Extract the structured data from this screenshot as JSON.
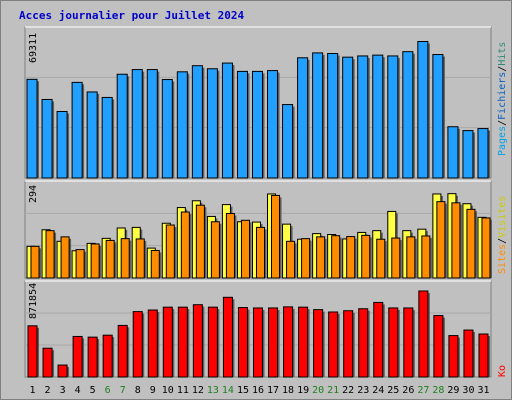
{
  "title": "Acces journalier pour Juillet 2024",
  "colors": {
    "pages": "#00a0e8",
    "fichiers": "#0a5dc0",
    "hits": "#22a0ff",
    "visites": "#ffff44",
    "sites": "#ff8c00",
    "ko": "#ff0000",
    "weekend_day": "#208020",
    "weekday": "#000000",
    "panel_bg": "#c0c0c0",
    "frame": "#808080"
  },
  "legend": {
    "pages": "Pages",
    "fichiers": "Fichiers",
    "hits": "Hits",
    "sites": "Sites",
    "visites": "Visites",
    "ko": "Ko",
    "sep": "/"
  },
  "chart_data": [
    {
      "type": "bar",
      "panel": "hits",
      "ymax_label": "69311",
      "ylim": [
        0,
        69311
      ],
      "categories": [
        "1",
        "2",
        "3",
        "4",
        "5",
        "6",
        "7",
        "8",
        "9",
        "10",
        "11",
        "12",
        "13",
        "14",
        "15",
        "16",
        "17",
        "18",
        "19",
        "20",
        "21",
        "22",
        "23",
        "24",
        "25",
        "26",
        "27",
        "28",
        "29",
        "30",
        "31"
      ],
      "weekend": [
        false,
        false,
        false,
        false,
        false,
        true,
        true,
        false,
        false,
        false,
        false,
        false,
        true,
        true,
        false,
        false,
        false,
        false,
        false,
        true,
        true,
        false,
        false,
        false,
        false,
        false,
        true,
        true,
        false,
        false,
        false
      ],
      "series": [
        {
          "name": "Hits",
          "values": [
            48500,
            38600,
            32700,
            47000,
            42300,
            39600,
            51000,
            53300,
            53300,
            48400,
            52200,
            55200,
            53700,
            56500,
            52400,
            52400,
            52800,
            36100,
            59100,
            61500,
            61200,
            59400,
            60000,
            60400,
            60000,
            62100,
            67100,
            60700,
            25200,
            23300,
            24300
          ]
        }
      ]
    },
    {
      "type": "bar",
      "panel": "visites",
      "ymax_label": "294",
      "ylim": [
        0,
        294
      ],
      "categories": [
        "1",
        "2",
        "3",
        "4",
        "5",
        "6",
        "7",
        "8",
        "9",
        "10",
        "11",
        "12",
        "13",
        "14",
        "15",
        "16",
        "17",
        "18",
        "19",
        "20",
        "21",
        "22",
        "23",
        "24",
        "25",
        "26",
        "27",
        "28",
        "29",
        "30",
        "31"
      ],
      "series": [
        {
          "name": "Visites",
          "values": [
            107,
            163,
            124,
            92,
            117,
            134,
            169,
            171,
            101,
            185,
            238,
            261,
            208,
            248,
            190,
            189,
            284,
            182,
            131,
            150,
            147,
            132,
            154,
            160,
            225,
            160,
            165,
            284,
            285,
            251,
            205
          ]
        },
        {
          "name": "Sites",
          "values": [
            107,
            160,
            139,
            96,
            115,
            127,
            133,
            132,
            93,
            179,
            223,
            246,
            190,
            218,
            195,
            171,
            279,
            124,
            133,
            139,
            143,
            140,
            144,
            131,
            135,
            139,
            142,
            258,
            254,
            232,
            203
          ]
        }
      ]
    },
    {
      "type": "bar",
      "panel": "ko",
      "ymax_label": "871854",
      "ylim": [
        0,
        871854
      ],
      "categories": [
        "1",
        "2",
        "3",
        "4",
        "5",
        "6",
        "7",
        "8",
        "9",
        "10",
        "11",
        "12",
        "13",
        "14",
        "15",
        "16",
        "17",
        "18",
        "19",
        "20",
        "21",
        "22",
        "23",
        "24",
        "25",
        "26",
        "27",
        "28",
        "29",
        "30",
        "31"
      ],
      "series": [
        {
          "name": "Ko",
          "values": [
            519000,
            292000,
            121000,
            411000,
            404000,
            424000,
            523000,
            663000,
            679000,
            708000,
            708000,
            733000,
            708000,
            808000,
            704000,
            700000,
            700000,
            711000,
            708000,
            683000,
            659000,
            672000,
            692000,
            756000,
            700000,
            700000,
            871854,
            623000,
            420000,
            476000,
            436000
          ]
        }
      ]
    }
  ]
}
